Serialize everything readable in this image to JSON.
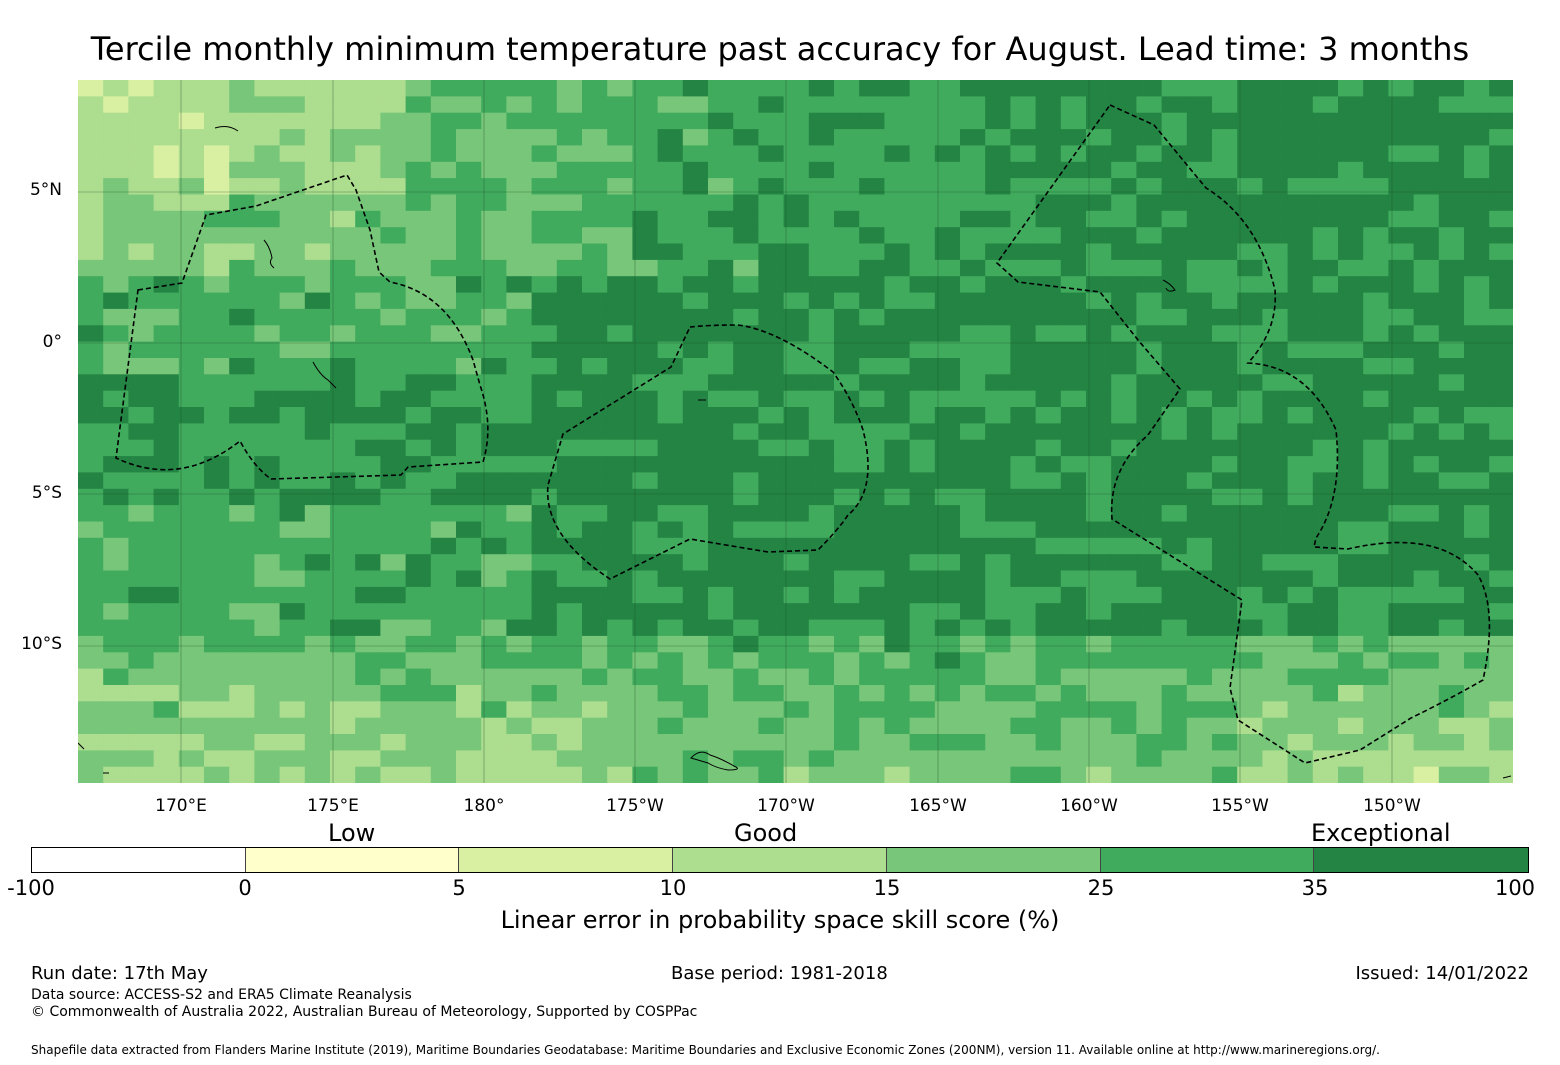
{
  "title": "Tercile monthly minimum temperature past accuracy for August. Lead time: 3 months",
  "map": {
    "lat_labels": [
      "5°N",
      "0°",
      "5°S",
      "10°S"
    ],
    "lon_labels": [
      "170°E",
      "175°E",
      "180°",
      "175°W",
      "170°W",
      "165°W",
      "160°W",
      "155°W",
      "150°W"
    ],
    "gridline_color": "#1a4d2a",
    "eez_line_style": "dashed-black"
  },
  "colorbar": {
    "categories": [
      "Low",
      "Good",
      "Exceptional"
    ],
    "ticks": [
      "-100",
      "0",
      "5",
      "10",
      "15",
      "25",
      "35",
      "100"
    ],
    "colors": [
      "#ffffff",
      "#ffffcc",
      "#d9f0a3",
      "#addd8e",
      "#78c679",
      "#41ab5d",
      "#238443"
    ],
    "label": "Linear error in probability space skill score (%)"
  },
  "footer": {
    "run_date": "Run date: 17th May",
    "base_period": "Base period: 1981-2018",
    "issued": "Issued: 14/01/2022",
    "data_source": "Data source: ACCESS-S2 and ERA5 Climate Reanalysis",
    "copyright": "© Commonwealth of Australia 2022, Australian Bureau of Meteorology, Supported by COSPPac",
    "shapefile": "Shapefile data extracted from Flanders Marine Institute (2019), Maritime Boundaries Geodatabase: Maritime Boundaries and Exclusive Economic Zones (200NM), version 11. Available online at http://www.marineregions.org/."
  }
}
